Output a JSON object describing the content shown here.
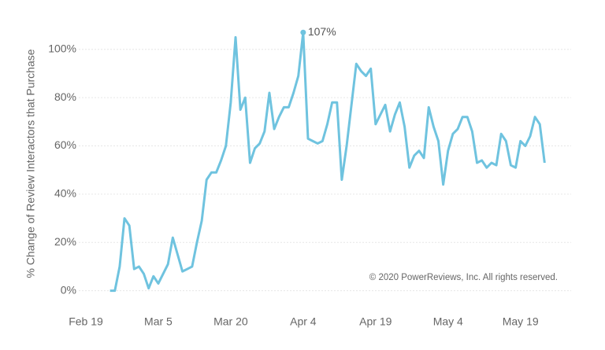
{
  "chart_data": {
    "type": "line",
    "y_label": "% Change of Review Interactors that Purchase",
    "note": "© 2020 PowerReviews, Inc. All rights reserved.",
    "x": [
      "Feb 19",
      "Feb 20",
      "Feb 21",
      "Feb 22",
      "Feb 23",
      "Feb 24",
      "Feb 25",
      "Feb 26",
      "Feb 27",
      "Feb 28",
      "Feb 29",
      "Mar 1",
      "Mar 2",
      "Mar 3",
      "Mar 4",
      "Mar 5",
      "Mar 6",
      "Mar 7",
      "Mar 8",
      "Mar 9",
      "Mar 10",
      "Mar 11",
      "Mar 12",
      "Mar 13",
      "Mar 14",
      "Mar 15",
      "Mar 16",
      "Mar 17",
      "Mar 18",
      "Mar 19",
      "Mar 20",
      "Mar 21",
      "Mar 22",
      "Mar 23",
      "Mar 24",
      "Mar 25",
      "Mar 26",
      "Mar 27",
      "Mar 28",
      "Mar 29",
      "Mar 30",
      "Mar 31",
      "Apr 1",
      "Apr 2",
      "Apr 3",
      "Apr 4",
      "Apr 5",
      "Apr 6",
      "Apr 7",
      "Apr 8",
      "Apr 9",
      "Apr 10",
      "Apr 11",
      "Apr 12",
      "Apr 13",
      "Apr 14",
      "Apr 15",
      "Apr 16",
      "Apr 17",
      "Apr 18",
      "Apr 19",
      "Apr 20",
      "Apr 21",
      "Apr 22",
      "Apr 23",
      "Apr 24",
      "Apr 25",
      "Apr 26",
      "Apr 27",
      "Apr 28",
      "Apr 29",
      "Apr 30",
      "May 1",
      "May 2",
      "May 3",
      "May 4",
      "May 5",
      "May 6",
      "May 7",
      "May 8",
      "May 9",
      "May 10",
      "May 11",
      "May 12",
      "May 13",
      "May 14",
      "May 15",
      "May 16",
      "May 17",
      "May 18",
      "May 19",
      "May 20",
      "May 21",
      "May 22",
      "May 23",
      "May 24"
    ],
    "series": [
      {
        "name": "% Change",
        "color": "#6fc3df",
        "values": [
          null,
          null,
          null,
          null,
          null,
          0,
          0,
          10,
          30,
          27,
          9,
          10,
          7,
          1,
          6,
          3,
          7,
          11,
          22,
          15,
          8,
          9,
          10,
          20,
          29,
          46,
          49,
          49,
          54,
          60,
          78,
          105,
          75,
          80,
          53,
          59,
          61,
          66,
          82,
          67,
          72,
          76,
          76,
          82,
          89,
          107,
          63,
          62,
          61,
          62,
          69,
          78,
          78,
          46,
          60,
          77,
          94,
          91,
          89,
          92,
          69,
          73,
          77,
          66,
          73,
          78,
          68,
          51,
          56,
          58,
          55,
          76,
          68,
          62,
          44,
          58,
          65,
          67,
          72,
          72,
          66,
          53,
          54,
          51,
          53,
          52,
          65,
          62,
          52,
          51,
          62,
          60,
          64,
          72,
          69,
          53
        ]
      }
    ],
    "annotations": [
      {
        "x": "Apr 4",
        "value": 107,
        "label": "107%"
      }
    ],
    "ylim": [
      -5,
      111
    ],
    "yticks": [
      {
        "value": 0,
        "label": "0%"
      },
      {
        "value": 20,
        "label": "20%"
      },
      {
        "value": 40,
        "label": "40%"
      },
      {
        "value": 60,
        "label": "60%"
      },
      {
        "value": 80,
        "label": "80%"
      },
      {
        "value": 100,
        "label": "100%"
      }
    ],
    "xticks": [
      "Feb 19",
      "Mar 5",
      "Mar 20",
      "Apr 4",
      "Apr 19",
      "May 4",
      "May 19"
    ],
    "grid": true
  }
}
